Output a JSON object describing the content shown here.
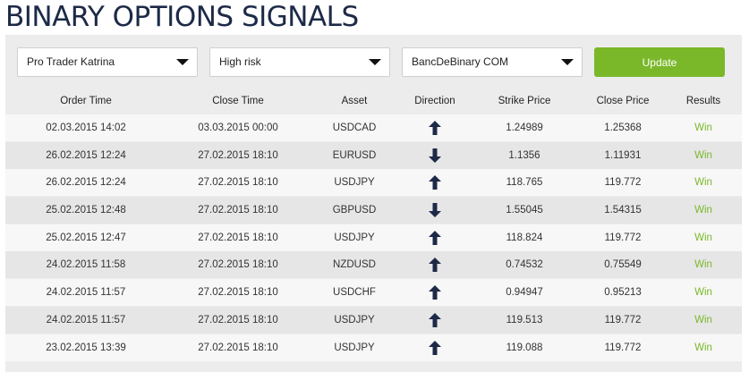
{
  "title": "BINARY OPTIONS SIGNALS",
  "filters": {
    "trader": "Pro Trader Katrina",
    "risk": "High risk",
    "broker": "BancDeBinary COM"
  },
  "update_label": "Update",
  "columns": [
    "Order Time",
    "Close Time",
    "Asset",
    "Direction",
    "Strike Price",
    "Close Price",
    "Results"
  ],
  "rows": [
    {
      "order_time": "02.03.2015 14:02",
      "close_time": "03.03.2015 00:00",
      "asset": "USDCAD",
      "direction": "up",
      "strike": "1.24989",
      "close": "1.25368",
      "result": "Win"
    },
    {
      "order_time": "26.02.2015 12:24",
      "close_time": "27.02.2015 18:10",
      "asset": "EURUSD",
      "direction": "down",
      "strike": "1.1356",
      "close": "1.11931",
      "result": "Win"
    },
    {
      "order_time": "26.02.2015 12:24",
      "close_time": "27.02.2015 18:10",
      "asset": "USDJPY",
      "direction": "up",
      "strike": "118.765",
      "close": "119.772",
      "result": "Win"
    },
    {
      "order_time": "25.02.2015 12:48",
      "close_time": "27.02.2015 18:10",
      "asset": "GBPUSD",
      "direction": "down",
      "strike": "1.55045",
      "close": "1.54315",
      "result": "Win"
    },
    {
      "order_time": "25.02.2015 12:47",
      "close_time": "27.02.2015 18:10",
      "asset": "USDJPY",
      "direction": "up",
      "strike": "118.824",
      "close": "119.772",
      "result": "Win"
    },
    {
      "order_time": "24.02.2015 11:58",
      "close_time": "27.02.2015 18:10",
      "asset": "NZDUSD",
      "direction": "up",
      "strike": "0.74532",
      "close": "0.75549",
      "result": "Win"
    },
    {
      "order_time": "24.02.2015 11:57",
      "close_time": "27.02.2015 18:10",
      "asset": "USDCHF",
      "direction": "up",
      "strike": "0.94947",
      "close": "0.95213",
      "result": "Win"
    },
    {
      "order_time": "24.02.2015 11:57",
      "close_time": "27.02.2015 18:10",
      "asset": "USDJPY",
      "direction": "up",
      "strike": "119.513",
      "close": "119.772",
      "result": "Win"
    },
    {
      "order_time": "23.02.2015 13:39",
      "close_time": "27.02.2015 18:10",
      "asset": "USDJPY",
      "direction": "up",
      "strike": "119.088",
      "close": "119.772",
      "result": "Win"
    }
  ],
  "colors": {
    "title": "#1d2a47",
    "accent_green": "#7ab82a",
    "arrow": "#1d2a47"
  }
}
